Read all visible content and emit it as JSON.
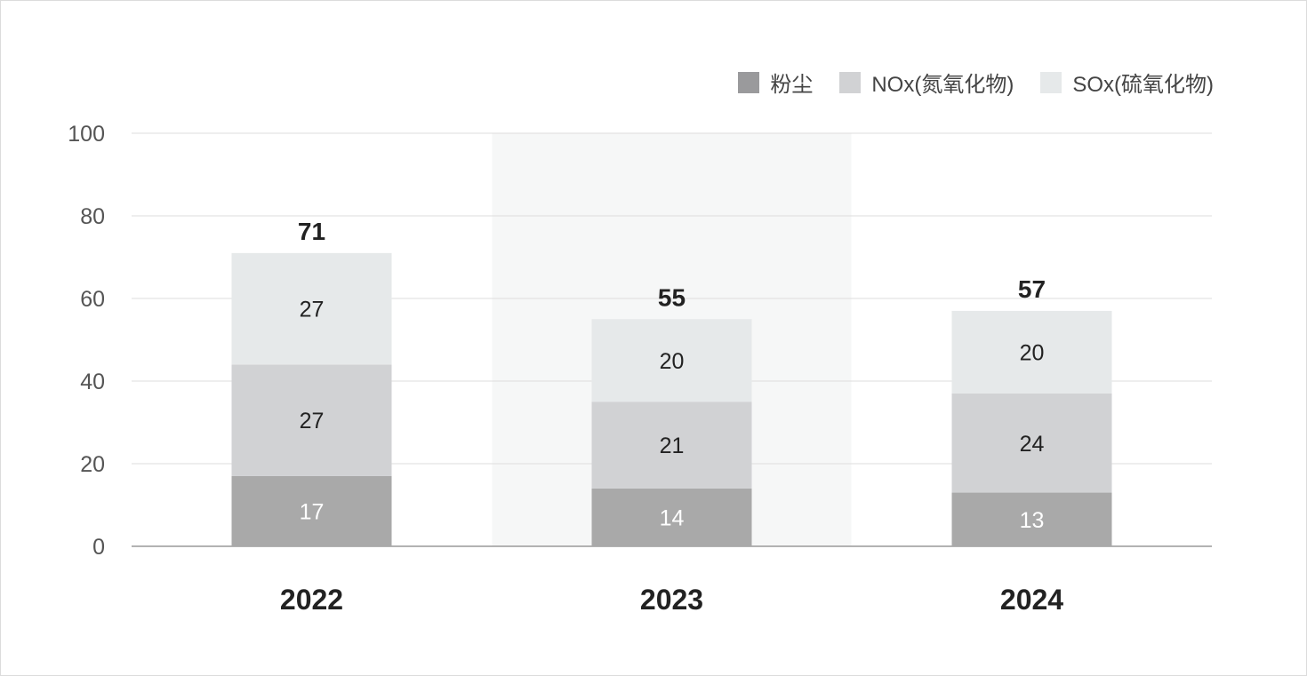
{
  "chart_data": {
    "type": "bar",
    "stacked": true,
    "categories": [
      "2022",
      "2023",
      "2024"
    ],
    "series": [
      {
        "name": "粉尘",
        "values": [
          17,
          14,
          13
        ],
        "color": "#a9a9a9",
        "label_color": "#ffffff"
      },
      {
        "name": "NOx(氮氧化物)",
        "values": [
          27,
          21,
          24
        ],
        "color": "#d1d2d4",
        "label_color": "#222222"
      },
      {
        "name": "SOx(硫氧化物)",
        "values": [
          27,
          20,
          20
        ],
        "color": "#e6e9ea",
        "label_color": "#222222"
      }
    ],
    "totals": [
      71,
      55,
      57
    ],
    "ylim": [
      0,
      100
    ],
    "yticks": [
      0,
      20,
      40,
      60,
      80,
      100
    ],
    "highlight_category": "2023",
    "grid": true,
    "legend_position": "top-right"
  }
}
